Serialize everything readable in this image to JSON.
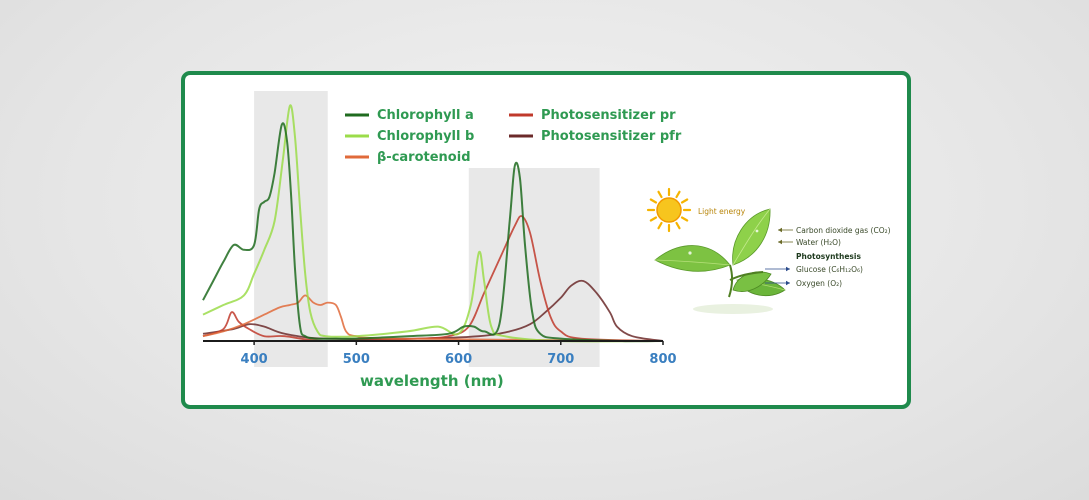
{
  "colors": {
    "frame": "#1f8a4c",
    "shade": "#e8e8e8",
    "legend_text": "#2f9a52",
    "tick_text": "#3a7fc0"
  },
  "chart_data": {
    "type": "line",
    "xlabel": "wavelength  (nm)",
    "xlim": [
      350,
      800
    ],
    "ylim": [
      0,
      1
    ],
    "xticks": [
      400,
      500,
      600,
      700,
      800
    ],
    "grid": false,
    "legend_position": "top",
    "shaded_ranges": [
      [
        400,
        472
      ],
      [
        610,
        738
      ]
    ],
    "series": [
      {
        "name": "Chlorophyll a",
        "color": "#1f6b1f",
        "points": [
          [
            350,
            0.17
          ],
          [
            360,
            0.25
          ],
          [
            370,
            0.33
          ],
          [
            380,
            0.4
          ],
          [
            390,
            0.38
          ],
          [
            400,
            0.4
          ],
          [
            405,
            0.55
          ],
          [
            410,
            0.58
          ],
          [
            415,
            0.6
          ],
          [
            420,
            0.7
          ],
          [
            427,
            0.9
          ],
          [
            432,
            0.84
          ],
          [
            436,
            0.62
          ],
          [
            440,
            0.3
          ],
          [
            445,
            0.06
          ],
          [
            450,
            0.02
          ],
          [
            460,
            0.01
          ],
          [
            480,
            0.01
          ],
          [
            500,
            0.01
          ],
          [
            550,
            0.02
          ],
          [
            590,
            0.03
          ],
          [
            605,
            0.06
          ],
          [
            615,
            0.06
          ],
          [
            625,
            0.04
          ],
          [
            640,
            0.07
          ],
          [
            650,
            0.5
          ],
          [
            655,
            0.73
          ],
          [
            660,
            0.68
          ],
          [
            665,
            0.4
          ],
          [
            672,
            0.12
          ],
          [
            680,
            0.03
          ],
          [
            700,
            0.01
          ],
          [
            760,
            0.0
          ],
          [
            800,
            0.0
          ]
        ]
      },
      {
        "name": "Chlorophyll b",
        "color": "#9bdc4a",
        "points": [
          [
            350,
            0.11
          ],
          [
            370,
            0.15
          ],
          [
            390,
            0.19
          ],
          [
            400,
            0.28
          ],
          [
            410,
            0.38
          ],
          [
            420,
            0.5
          ],
          [
            428,
            0.75
          ],
          [
            435,
            0.98
          ],
          [
            440,
            0.85
          ],
          [
            445,
            0.55
          ],
          [
            450,
            0.28
          ],
          [
            455,
            0.12
          ],
          [
            462,
            0.04
          ],
          [
            470,
            0.02
          ],
          [
            500,
            0.02
          ],
          [
            550,
            0.04
          ],
          [
            580,
            0.06
          ],
          [
            600,
            0.03
          ],
          [
            612,
            0.15
          ],
          [
            620,
            0.37
          ],
          [
            625,
            0.25
          ],
          [
            632,
            0.06
          ],
          [
            645,
            0.02
          ],
          [
            700,
            0.0
          ],
          [
            800,
            0.0
          ]
        ]
      },
      {
        "name": "β-carotenoid",
        "color": "#e06a3a",
        "points": [
          [
            350,
            0.02
          ],
          [
            370,
            0.04
          ],
          [
            390,
            0.07
          ],
          [
            410,
            0.11
          ],
          [
            425,
            0.14
          ],
          [
            435,
            0.15
          ],
          [
            443,
            0.16
          ],
          [
            450,
            0.19
          ],
          [
            458,
            0.16
          ],
          [
            465,
            0.15
          ],
          [
            472,
            0.16
          ],
          [
            480,
            0.15
          ],
          [
            485,
            0.1
          ],
          [
            490,
            0.04
          ],
          [
            500,
            0.02
          ],
          [
            540,
            0.01
          ],
          [
            800,
            0.0
          ]
        ]
      },
      {
        "name": "Photosensitizer pr",
        "color": "#c0392b",
        "points": [
          [
            350,
            0.02
          ],
          [
            370,
            0.05
          ],
          [
            378,
            0.12
          ],
          [
            385,
            0.08
          ],
          [
            395,
            0.05
          ],
          [
            410,
            0.02
          ],
          [
            430,
            0.02
          ],
          [
            470,
            0.0
          ],
          [
            560,
            0.01
          ],
          [
            590,
            0.02
          ],
          [
            610,
            0.06
          ],
          [
            625,
            0.2
          ],
          [
            640,
            0.34
          ],
          [
            655,
            0.48
          ],
          [
            662,
            0.52
          ],
          [
            670,
            0.45
          ],
          [
            680,
            0.25
          ],
          [
            690,
            0.1
          ],
          [
            700,
            0.04
          ],
          [
            720,
            0.01
          ],
          [
            800,
            0.0
          ]
        ]
      },
      {
        "name": "Photosensitizer pfr",
        "color": "#6b2a2a",
        "points": [
          [
            350,
            0.03
          ],
          [
            380,
            0.05
          ],
          [
            395,
            0.07
          ],
          [
            410,
            0.06
          ],
          [
            430,
            0.03
          ],
          [
            470,
            0.01
          ],
          [
            560,
            0.01
          ],
          [
            620,
            0.02
          ],
          [
            650,
            0.04
          ],
          [
            670,
            0.07
          ],
          [
            685,
            0.12
          ],
          [
            700,
            0.18
          ],
          [
            710,
            0.23
          ],
          [
            722,
            0.25
          ],
          [
            735,
            0.2
          ],
          [
            748,
            0.12
          ],
          [
            755,
            0.06
          ],
          [
            770,
            0.02
          ],
          [
            800,
            0.0
          ]
        ]
      }
    ]
  },
  "diagram": {
    "light_label": "Light energy",
    "co2_label": "Carbon dioxide gas (CO₂)",
    "water_label": "Water (H₂O)",
    "process_label": "Photosynthesis",
    "glucose_label": "Glucose (C₆H₁₂O₆)",
    "oxygen_label": "Oxygen (O₂)"
  }
}
